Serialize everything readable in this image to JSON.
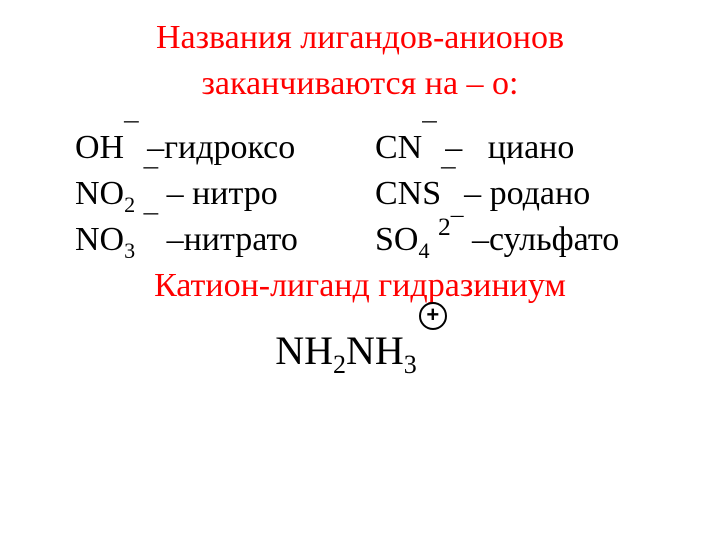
{
  "title_line1": "Названия лигандов-анионов",
  "title_line2": "заканчиваются на – о:",
  "anions": {
    "left": [
      {
        "base": "OH",
        "sub": "",
        "sup": "¯",
        "name": "–гидроксо"
      },
      {
        "base": "NO",
        "sub": "2",
        "sup": "¯",
        "spacer": " ",
        "name": "– нитро"
      },
      {
        "base": "NO",
        "sub": "3",
        "sup": "¯",
        "spacer": " ",
        "name": "–нитрато"
      }
    ],
    "right": [
      {
        "base": "CN",
        "sub": "",
        "sup": "¯",
        "name": "–   циано"
      },
      {
        "base": "CNS",
        "sub": "",
        "sup": "¯",
        "name": "– родано"
      },
      {
        "base": "SO",
        "sub": "4",
        "sup": "2¯",
        "spacer": " ",
        "name": "–сульфато"
      }
    ]
  },
  "cation_title": "Катион-лиганд гидразиниум",
  "formula": {
    "part1": "NH",
    "sub1": "2",
    "part2": "NH",
    "sub2": "3",
    "charge": "+"
  },
  "colors": {
    "title": "#ff0000",
    "body": "#000000",
    "background": "#ffffff"
  }
}
